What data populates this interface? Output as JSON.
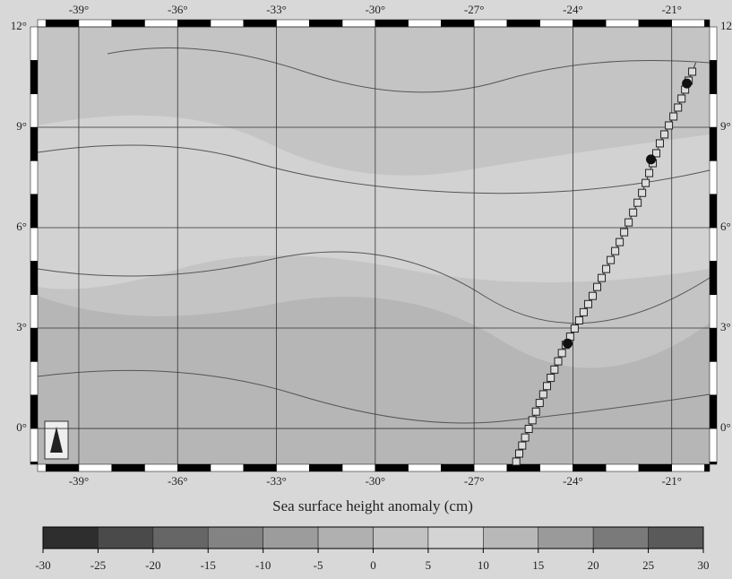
{
  "map": {
    "xlim": [
      -40.25,
      -19.85
    ],
    "ylim": [
      -1.07,
      12
    ],
    "xticks": [
      {
        "value": -39,
        "label": "-39°"
      },
      {
        "value": -36,
        "label": "-36°"
      },
      {
        "value": -33,
        "label": "-33°"
      },
      {
        "value": -30,
        "label": "-30°"
      },
      {
        "value": -27,
        "label": "-27°"
      },
      {
        "value": -24,
        "label": "-24°"
      },
      {
        "value": -21,
        "label": "-21°"
      }
    ],
    "yticks": [
      {
        "value": 0,
        "label": "0°"
      },
      {
        "value": 3,
        "label": "3°"
      },
      {
        "value": 6,
        "label": "6°"
      },
      {
        "value": 9,
        "label": "9°"
      },
      {
        "value": 12,
        "label": "12°"
      }
    ],
    "grid": true,
    "track": {
      "lon": [
        -25.72,
        -25.45,
        -24.9,
        -24.22,
        -23.4,
        -22.58,
        -21.9,
        -21.36,
        -20.81,
        -20.27
      ],
      "lat": [
        -0.99,
        -0.27,
        1.02,
        2.5,
        3.96,
        5.57,
        7.04,
        8.52,
        9.59,
        10.93
      ]
    },
    "stations": {
      "lon": [
        -24.16,
        -21.63,
        -20.54
      ],
      "lat": [
        2.54,
        8.04,
        10.31
      ]
    }
  },
  "colorbar": {
    "title": "Sea surface height anomaly (cm)",
    "xlim": [
      -30,
      30
    ],
    "ticks": [
      -30,
      -25,
      -20,
      -15,
      -10,
      -5,
      0,
      5,
      10,
      15,
      20,
      25,
      30
    ],
    "colors": [
      "#2e2e2e",
      "#4a4a4a",
      "#666666",
      "#838383",
      "#9c9c9c",
      "#b0b0b0",
      "#c2c2c2",
      "#d4d4d4",
      "#b8b8b8",
      "#9a9a9a",
      "#7a7a7a",
      "#5a5a5a"
    ]
  }
}
